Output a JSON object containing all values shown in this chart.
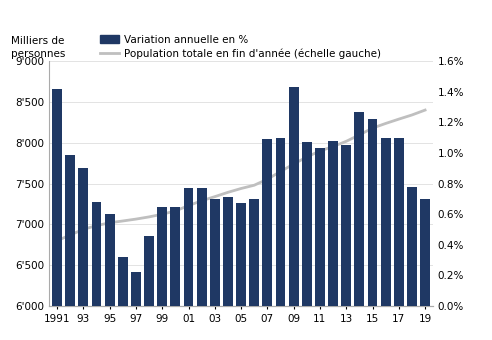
{
  "years": [
    1991,
    1992,
    1993,
    1994,
    1995,
    1996,
    1997,
    1998,
    1999,
    2000,
    2001,
    2002,
    2003,
    2004,
    2005,
    2006,
    2007,
    2008,
    2009,
    2010,
    2011,
    2012,
    2013,
    2014,
    2015,
    2016,
    2017,
    2018,
    2019
  ],
  "variation_pct": [
    1.42,
    0.99,
    0.9,
    0.68,
    0.6,
    0.32,
    0.22,
    0.46,
    0.65,
    0.65,
    0.77,
    0.77,
    0.7,
    0.71,
    0.67,
    0.7,
    1.09,
    1.1,
    1.43,
    1.07,
    1.03,
    1.08,
    1.05,
    1.27,
    1.22,
    1.1,
    1.1,
    0.78,
    0.7
  ],
  "population": [
    6800,
    6870,
    6940,
    6985,
    7020,
    7042,
    7065,
    7092,
    7125,
    7165,
    7230,
    7290,
    7340,
    7393,
    7440,
    7480,
    7554,
    7648,
    7740,
    7826,
    7900,
    7954,
    8018,
    8097,
    8180,
    8237,
    8290,
    8341,
    8401
  ],
  "xtick_labels": [
    "1991",
    "93",
    "95",
    "97",
    "99",
    "01",
    "03",
    "05",
    "07",
    "09",
    "11",
    "13",
    "15",
    "17",
    "19"
  ],
  "xtick_positions": [
    1991,
    1993,
    1995,
    1997,
    1999,
    2001,
    2003,
    2005,
    2007,
    2009,
    2011,
    2013,
    2015,
    2017,
    2019
  ],
  "bar_color": "#1F3864",
  "line_color": "#BFBFBF",
  "yleft_min": 6000,
  "yleft_max": 9000,
  "yleft_ticks": [
    6000,
    6500,
    7000,
    7500,
    8000,
    8500,
    9000
  ],
  "yright_min": 0.0,
  "yright_max": 1.6,
  "yright_ticks": [
    0.0,
    0.2,
    0.4,
    0.6,
    0.8,
    1.0,
    1.2,
    1.4,
    1.6
  ],
  "legend_bar": "Variation annuelle en %",
  "legend_line": "Population totale en fin d'année (échelle gauche)",
  "ylabel_left": "Milliers de\npersonnes",
  "background_color": "#FFFFFF",
  "grid_color": "#D8D8D8"
}
